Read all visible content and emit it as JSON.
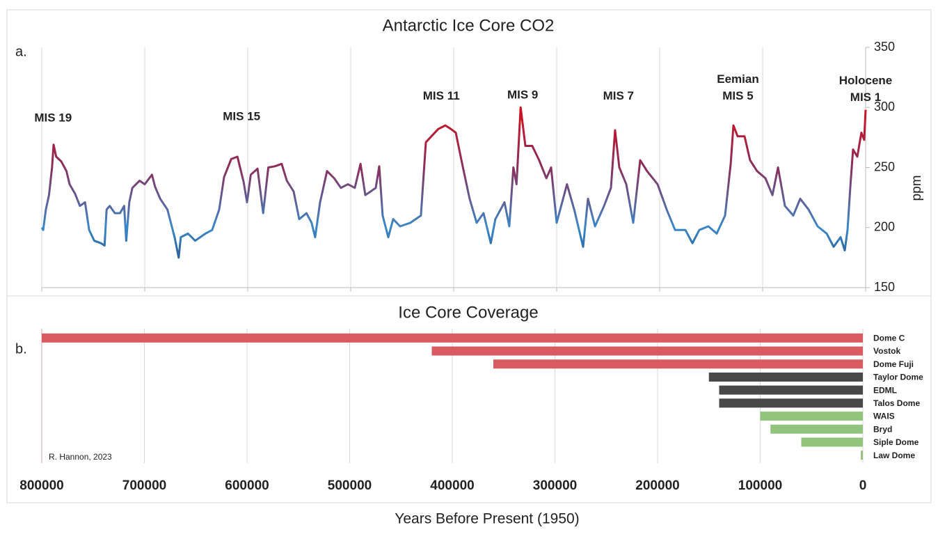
{
  "chart_data": [
    {
      "type": "line",
      "title": "Antarctic Ice Core CO2",
      "panel_label": "a.",
      "y_label": "ppm",
      "x": [
        800000,
        798600,
        796000,
        793000,
        790000,
        788500,
        786000,
        781000,
        776000,
        773000,
        767600,
        763000,
        758000,
        754000,
        749000,
        742600,
        739000,
        737000,
        734000,
        729000,
        724000,
        720000,
        718000,
        715000,
        712000,
        705000,
        700000,
        693000,
        690000,
        685000,
        678000,
        671000,
        667000,
        665000,
        658000,
        651000,
        641000,
        634500,
        627700,
        623000,
        616000,
        610000,
        604000,
        600700,
        597000,
        590500,
        585000,
        580000,
        573700,
        567000,
        562000,
        555400,
        550000,
        543000,
        538000,
        534500,
        529700,
        523000,
        516000,
        509500,
        502700,
        496000,
        490500,
        485800,
        475700,
        472300,
        469000,
        463500,
        458800,
        452000,
        442000,
        431800,
        427000,
        421600,
        415000,
        408100,
        402700,
        398000,
        391000,
        384500,
        377700,
        371000,
        364000,
        359500,
        350700,
        346000,
        342000,
        339000,
        335000,
        330400,
        323700,
        317000,
        310000,
        305400,
        300000,
        290000,
        283000,
        274300,
        269600,
        262800,
        254000,
        247300,
        243300,
        239200,
        232400,
        225700,
        218900,
        212200,
        202000,
        193200,
        185100,
        175000,
        168200,
        161500,
        152700,
        144600,
        136500,
        131000,
        128400,
        124300,
        117600,
        112200,
        105400,
        97300,
        90500,
        85100,
        78400,
        70300,
        63500,
        55400,
        46600,
        37800,
        31100,
        24300,
        20300,
        17600,
        14900,
        12200,
        8100,
        4100,
        1400,
        0
      ],
      "values": [
        200,
        198,
        215,
        227,
        250,
        269,
        259,
        255,
        247,
        236,
        228,
        218,
        221,
        198,
        189,
        187,
        185,
        215,
        218,
        212,
        212,
        218,
        189,
        221,
        233,
        239,
        236,
        244,
        234,
        224,
        215,
        192,
        175,
        192,
        195,
        189,
        195,
        198,
        215,
        242,
        257,
        259,
        238,
        221,
        244,
        249,
        212,
        250,
        251,
        253,
        239,
        230,
        207,
        212,
        204,
        192,
        221,
        247,
        241,
        233,
        236,
        233,
        253,
        227,
        233,
        251,
        210,
        192,
        207,
        201,
        204,
        210,
        271,
        276,
        282,
        285,
        282,
        279,
        250,
        224,
        204,
        212,
        187,
        207,
        221,
        201,
        250,
        236,
        300,
        268,
        268,
        256,
        241,
        250,
        204,
        236,
        215,
        184,
        224,
        201,
        218,
        233,
        281,
        250,
        236,
        204,
        256,
        247,
        236,
        215,
        198,
        198,
        187,
        198,
        201,
        195,
        210,
        253,
        285,
        276,
        276,
        256,
        247,
        241,
        227,
        250,
        218,
        210,
        224,
        215,
        201,
        195,
        184,
        192,
        181,
        198,
        233,
        265,
        259,
        279,
        273,
        298
      ],
      "colors": [
        "#1c3868",
        "#3a88c8",
        "#8a2f5c",
        "#d40f1c"
      ],
      "xlim": [
        800000,
        0
      ],
      "ylim": [
        150,
        350
      ],
      "yticks": [
        150,
        200,
        250,
        300,
        350
      ],
      "grid": true,
      "annotations": [
        {
          "text": "MIS 19",
          "x": 789000,
          "y": 291
        },
        {
          "text": "MIS 15",
          "x": 606000,
          "y": 292
        },
        {
          "text": "MIS 11",
          "x": 412000,
          "y": 309
        },
        {
          "text": "MIS 9",
          "x": 333000,
          "y": 310
        },
        {
          "text": "MIS 7",
          "x": 240000,
          "y": 309
        },
        {
          "text": "Eemian",
          "x": 124000,
          "y": 323
        },
        {
          "text": "MIS 5",
          "x": 124000,
          "y": 309
        },
        {
          "text": "Holocene",
          "x": 0,
          "y": 322
        },
        {
          "text": "MIS 1",
          "x": 0,
          "y": 308
        }
      ]
    },
    {
      "type": "barh",
      "title": "Ice Core Coverage",
      "panel_label": "b.",
      "x_label": "Years Before Present (1950)",
      "note": "R. Hannon, 2023",
      "categories": [
        "Dome C",
        "Vostok",
        "Dome Fuji",
        "Taylor Dome",
        "EDML",
        "Talos Dome",
        "WAIS",
        "Bryd",
        "Siple Dome",
        "Law Dome"
      ],
      "values": [
        800000,
        420000,
        360000,
        150000,
        140000,
        140000,
        100000,
        90000,
        60000,
        2000
      ],
      "colors": [
        "#d95a60",
        "#d95a60",
        "#d95a60",
        "#484848",
        "#484848",
        "#484848",
        "#93c47d",
        "#93c47d",
        "#93c47d",
        "#93c47d"
      ],
      "xlim": [
        800000,
        0
      ],
      "xticks": [
        800000,
        700000,
        600000,
        500000,
        400000,
        300000,
        200000,
        100000,
        0
      ],
      "grid": true
    }
  ]
}
